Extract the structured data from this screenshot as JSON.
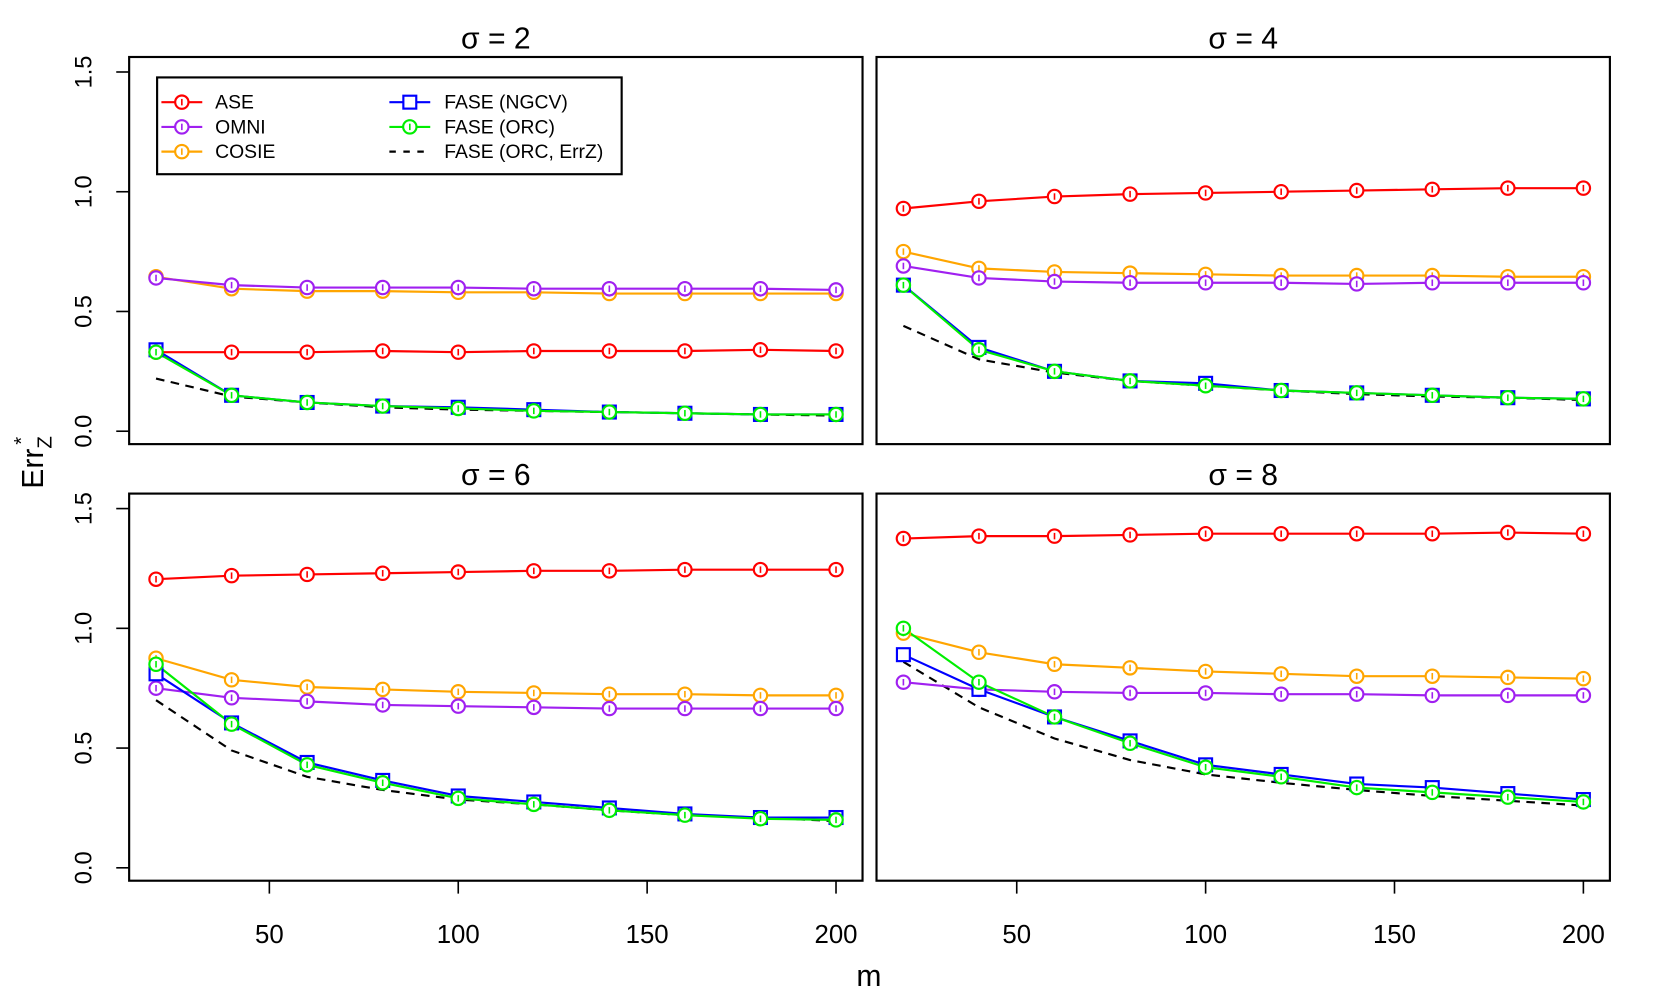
{
  "chart_data": {
    "type": "line",
    "xlabel": "m",
    "ylabel": "Err",
    "ylabel_subscript": "Z",
    "ylabel_superscript": "*",
    "ylim": [
      0,
      1.5
    ],
    "yticks": [
      "0.0",
      "0.5",
      "1.0",
      "1.5"
    ],
    "xticks": [
      "50",
      "100",
      "150",
      "200"
    ],
    "xtick_values": [
      50,
      100,
      150,
      200
    ],
    "x": [
      20,
      40,
      60,
      80,
      100,
      120,
      140,
      160,
      180,
      200
    ],
    "legend_placement": "top-left (first panel)",
    "legend": [
      {
        "name": "ASE",
        "color": "#ff0000",
        "marker": "circle",
        "dash": false
      },
      {
        "name": "OMNI",
        "color": "#a020f0",
        "marker": "circle",
        "dash": false
      },
      {
        "name": "COSIE",
        "color": "#ffa500",
        "marker": "circle",
        "dash": false
      },
      {
        "name": "FASE (NGCV)",
        "color": "#0000ff",
        "marker": "square",
        "dash": false
      },
      {
        "name": "FASE (ORC)",
        "color": "#00ee00",
        "marker": "circle",
        "dash": false
      },
      {
        "name": "FASE (ORC, ErrZ)",
        "color": "#000000",
        "marker": "none",
        "dash": true
      }
    ],
    "panels": [
      {
        "title": "σ = 2",
        "series": [
          {
            "name": "ASE",
            "values": [
              0.33,
              0.33,
              0.33,
              0.335,
              0.33,
              0.335,
              0.335,
              0.335,
              0.34,
              0.335
            ]
          },
          {
            "name": "OMNI",
            "values": [
              0.64,
              0.61,
              0.6,
              0.6,
              0.6,
              0.595,
              0.595,
              0.595,
              0.595,
              0.59
            ]
          },
          {
            "name": "COSIE",
            "values": [
              0.645,
              0.595,
              0.585,
              0.585,
              0.58,
              0.58,
              0.575,
              0.575,
              0.575,
              0.575
            ]
          },
          {
            "name": "FASE (NGCV)",
            "values": [
              0.34,
              0.15,
              0.12,
              0.105,
              0.1,
              0.09,
              0.08,
              0.075,
              0.07,
              0.07
            ]
          },
          {
            "name": "FASE (ORC)",
            "values": [
              0.33,
              0.15,
              0.12,
              0.105,
              0.095,
              0.085,
              0.08,
              0.075,
              0.07,
              0.07
            ]
          },
          {
            "name": "FASE (ORC, ErrZ)",
            "values": [
              0.22,
              0.145,
              0.12,
              0.1,
              0.09,
              0.085,
              0.08,
              0.075,
              0.07,
              0.065
            ]
          }
        ]
      },
      {
        "title": "σ = 4",
        "series": [
          {
            "name": "ASE",
            "values": [
              0.93,
              0.96,
              0.98,
              0.99,
              0.995,
              1.0,
              1.005,
              1.01,
              1.015,
              1.015
            ]
          },
          {
            "name": "OMNI",
            "values": [
              0.69,
              0.64,
              0.625,
              0.62,
              0.62,
              0.62,
              0.615,
              0.62,
              0.62,
              0.62
            ]
          },
          {
            "name": "COSIE",
            "values": [
              0.75,
              0.68,
              0.665,
              0.66,
              0.655,
              0.65,
              0.65,
              0.65,
              0.645,
              0.645
            ]
          },
          {
            "name": "FASE (NGCV)",
            "values": [
              0.61,
              0.35,
              0.25,
              0.21,
              0.2,
              0.17,
              0.16,
              0.15,
              0.14,
              0.135
            ]
          },
          {
            "name": "FASE (ORC)",
            "values": [
              0.61,
              0.34,
              0.25,
              0.21,
              0.19,
              0.17,
              0.16,
              0.15,
              0.14,
              0.135
            ]
          },
          {
            "name": "FASE (ORC, ErrZ)",
            "values": [
              0.44,
              0.3,
              0.245,
              0.21,
              0.19,
              0.17,
              0.155,
              0.145,
              0.14,
              0.13
            ]
          }
        ]
      },
      {
        "title": "σ = 6",
        "series": [
          {
            "name": "ASE",
            "values": [
              1.205,
              1.22,
              1.225,
              1.23,
              1.235,
              1.24,
              1.24,
              1.245,
              1.245,
              1.245
            ]
          },
          {
            "name": "OMNI",
            "values": [
              0.75,
              0.71,
              0.695,
              0.68,
              0.675,
              0.67,
              0.665,
              0.665,
              0.665,
              0.665
            ]
          },
          {
            "name": "COSIE",
            "values": [
              0.875,
              0.785,
              0.755,
              0.745,
              0.735,
              0.73,
              0.725,
              0.725,
              0.72,
              0.72
            ]
          },
          {
            "name": "FASE (NGCV)",
            "values": [
              0.81,
              0.605,
              0.44,
              0.365,
              0.3,
              0.275,
              0.25,
              0.225,
              0.21,
              0.21
            ]
          },
          {
            "name": "FASE (ORC)",
            "values": [
              0.85,
              0.6,
              0.43,
              0.355,
              0.29,
              0.265,
              0.24,
              0.22,
              0.205,
              0.2
            ]
          },
          {
            "name": "FASE (ORC, ErrZ)",
            "values": [
              0.7,
              0.49,
              0.38,
              0.325,
              0.285,
              0.265,
              0.24,
              0.22,
              0.21,
              0.195
            ]
          }
        ]
      },
      {
        "title": "σ = 8",
        "series": [
          {
            "name": "ASE",
            "values": [
              1.375,
              1.385,
              1.385,
              1.39,
              1.395,
              1.395,
              1.395,
              1.395,
              1.4,
              1.395
            ]
          },
          {
            "name": "OMNI",
            "values": [
              0.775,
              0.745,
              0.735,
              0.73,
              0.73,
              0.725,
              0.725,
              0.72,
              0.72,
              0.72
            ]
          },
          {
            "name": "COSIE",
            "values": [
              0.98,
              0.9,
              0.85,
              0.835,
              0.82,
              0.81,
              0.8,
              0.8,
              0.795,
              0.79
            ]
          },
          {
            "name": "FASE (NGCV)",
            "values": [
              0.89,
              0.745,
              0.63,
              0.53,
              0.43,
              0.39,
              0.35,
              0.335,
              0.31,
              0.285
            ]
          },
          {
            "name": "FASE (ORC)",
            "values": [
              1.0,
              0.775,
              0.63,
              0.52,
              0.42,
              0.38,
              0.335,
              0.315,
              0.295,
              0.275
            ]
          },
          {
            "name": "FASE (ORC, ErrZ)",
            "values": [
              0.86,
              0.67,
              0.54,
              0.45,
              0.39,
              0.355,
              0.325,
              0.3,
              0.28,
              0.26
            ]
          }
        ]
      }
    ]
  }
}
